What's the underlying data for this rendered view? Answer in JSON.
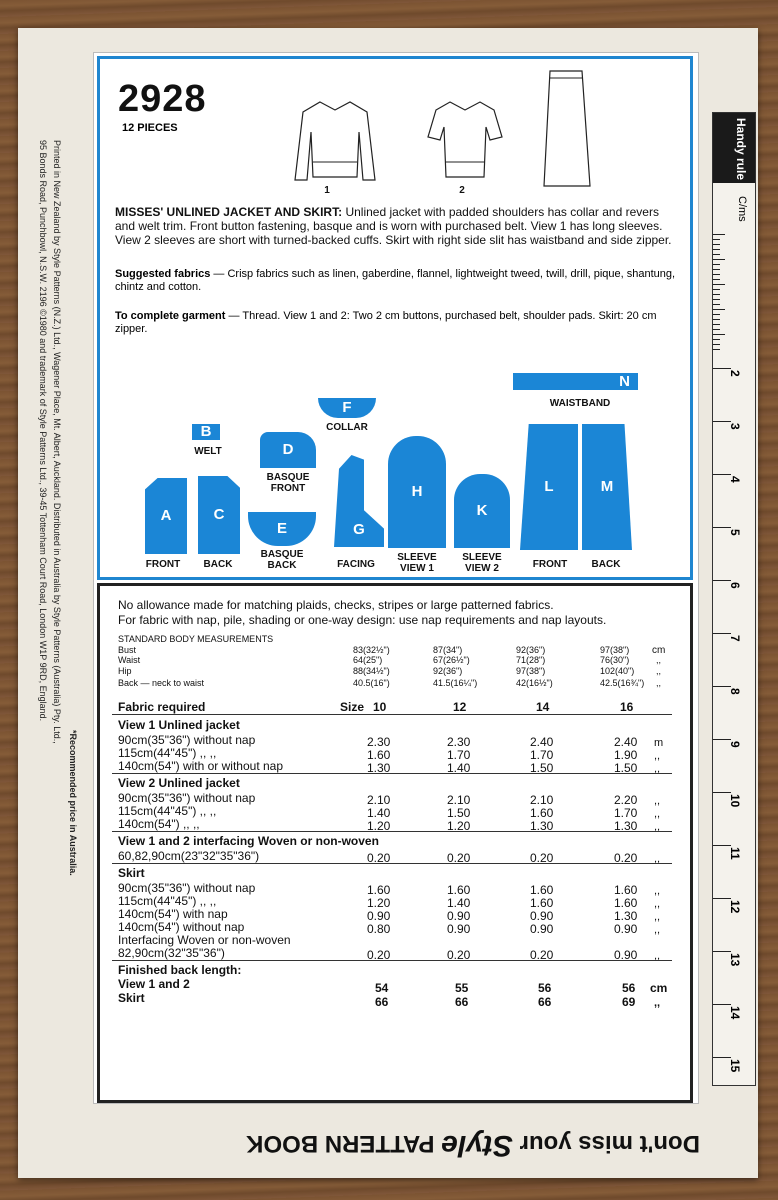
{
  "pattern": {
    "number": "2928",
    "pieces": "12 PIECES"
  },
  "views": {
    "v1": "1",
    "v2": "2"
  },
  "description": {
    "title": "MISSES' UNLINED JACKET AND SKIRT:",
    "text": "Unlined jacket with padded shoulders has collar and revers and welt trim. Front button fastening, basque and is worn with purchased belt. View 1 has long sleeves. View 2 sleeves are short with turned-backed cuffs. Skirt with right side slit has waistband and side zipper.",
    "fabrics_label": "Suggested fabrics",
    "fabrics": "— Crisp fabrics such as linen, gaberdine, flannel, lightweight tweed, twill, drill, pique, shantung, chintz and cotton.",
    "complete_label": "To complete garment",
    "complete": "— Thread. View 1 and 2: Two 2 cm buttons, purchased belt, shoulder pads. Skirt: 20 cm zipper."
  },
  "pieces": {
    "A": "A",
    "B": "B",
    "C": "C",
    "D": "D",
    "E": "E",
    "F": "F",
    "G": "G",
    "H": "H",
    "K": "K",
    "L": "L",
    "M": "M",
    "N": "N",
    "welt": "WELT",
    "collar": "COLLAR",
    "basque_front": "BASQUE FRONT",
    "basque_back": "BASQUE BACK",
    "front": "FRONT",
    "back": "BACK",
    "facing": "FACING",
    "sleeve1": "SLEEVE VIEW 1",
    "sleeve2": "SLEEVE VIEW 2",
    "waistband": "WAISTBAND",
    "skirt_front": "FRONT",
    "skirt_back": "BACK"
  },
  "notes": {
    "line1": "No allowance made for matching plaids, checks, stripes or large patterned fabrics.",
    "line2": "For fabric with nap, pile, shading or one-way design: use nap requirements and nap layouts."
  },
  "measurements": {
    "heading": "STANDARD BODY MEASUREMENTS",
    "rows": [
      "Bust",
      "Waist",
      "Hip",
      "Back — neck to waist"
    ],
    "cols": [
      [
        "83(32½\")",
        "64(25\")",
        "88(34½\")",
        "40.5(16\")"
      ],
      [
        "87(34\")",
        "67(26½\")",
        "92(36\")",
        "41.5(16¼\")"
      ],
      [
        "92(36\")",
        "71(28\")",
        "97(38\")",
        "42(16½\")"
      ],
      [
        "97(38\")",
        "76(30\")",
        "102(40\")",
        "42.5(16¾\")"
      ]
    ],
    "unit": "cm",
    "ditto": ",,"
  },
  "fabric": {
    "heading": "Fabric required",
    "size_label": "Size",
    "sizes": [
      "10",
      "12",
      "14",
      "16"
    ],
    "sections": [
      {
        "title": "View 1  Unlined jacket",
        "rows": [
          {
            "label": "90cm(35\"36\") without nap",
            "v": [
              "2.30",
              "2.30",
              "2.40",
              "2.40"
            ],
            "u": "m"
          },
          {
            "label": "115cm(44\"45\")      ,,      ,,",
            "v": [
              "1.60",
              "1.70",
              "1.70",
              "1.90"
            ],
            "u": ",,"
          },
          {
            "label": "140cm(54\") with or without nap",
            "v": [
              "1.30",
              "1.40",
              "1.50",
              "1.50"
            ],
            "u": ",,"
          }
        ]
      },
      {
        "title": "View 2  Unlined jacket",
        "rows": [
          {
            "label": "90cm(35\"36\") without nap",
            "v": [
              "2.10",
              "2.10",
              "2.10",
              "2.20"
            ],
            "u": ",,"
          },
          {
            "label": "115cm(44\"45\")      ,,      ,,",
            "v": [
              "1.40",
              "1.50",
              "1.60",
              "1.70"
            ],
            "u": ",,"
          },
          {
            "label": "140cm(54\")          ,,      ,,",
            "v": [
              "1.20",
              "1.20",
              "1.30",
              "1.30"
            ],
            "u": ",,"
          }
        ]
      },
      {
        "title": "View 1 and 2 interfacing  Woven or non-woven",
        "rows": [
          {
            "label": "60,82,90cm(23\"32\"35\"36\")",
            "v": [
              "0.20",
              "0.20",
              "0.20",
              "0.20"
            ],
            "u": ",,"
          }
        ]
      },
      {
        "title": "Skirt",
        "rows": [
          {
            "label": "90cm(35\"36\") without nap",
            "v": [
              "1.60",
              "1.60",
              "1.60",
              "1.60"
            ],
            "u": ",,"
          },
          {
            "label": "115cm(44\"45\")      ,,      ,,",
            "v": [
              "1.20",
              "1.40",
              "1.60",
              "1.60"
            ],
            "u": ",,"
          },
          {
            "label": "140cm(54\") with nap",
            "v": [
              "0.90",
              "0.90",
              "0.90",
              "1.30"
            ],
            "u": ",,"
          },
          {
            "label": "140cm(54\") without nap",
            "v": [
              "0.80",
              "0.90",
              "0.90",
              "0.90"
            ],
            "u": ",,"
          },
          {
            "label": "Interfacing  Woven or non-woven",
            "v": [
              "",
              "",
              "",
              ""
            ],
            "u": ""
          },
          {
            "label": "82,90cm(32\"35\"36\")",
            "v": [
              "0.20",
              "0.20",
              "0.20",
              "0.90"
            ],
            "u": ",,"
          }
        ]
      }
    ],
    "finished": {
      "title": "Finished back length:",
      "view12": "View 1 and 2",
      "skirt": "Skirt",
      "v12": [
        "54",
        "55",
        "56",
        "56"
      ],
      "sk": [
        "66",
        "66",
        "66",
        "69"
      ],
      "u1": "cm",
      "u2": ",,"
    }
  },
  "rule": {
    "label": "Handy rule",
    "unit": "C/ms",
    "marks": [
      "2",
      "3",
      "4",
      "5",
      "6",
      "7",
      "8",
      "9",
      "10",
      "11",
      "12",
      "13",
      "14",
      "15"
    ]
  },
  "side_text": {
    "left": "Printed in New Zealand by Style Patterns (N.Z.) Ltd., Wagener Place, Mt. Albert, Auckland. Distributed in Australia by Style Patterns (Australia) Pty. Ltd.,",
    "left2": "95 Bonds Road, Punchbowl, N.S.W. 2196     ©1980 and trademark of Style Patterns Ltd., 39-45 Tottenham Court Road, London W1P 9RD, England.",
    "right": "*Recommended price in Australia."
  },
  "bottom": {
    "text": "Don't miss your",
    "brand": "Style",
    "tail": "PATTERN BOOK"
  }
}
